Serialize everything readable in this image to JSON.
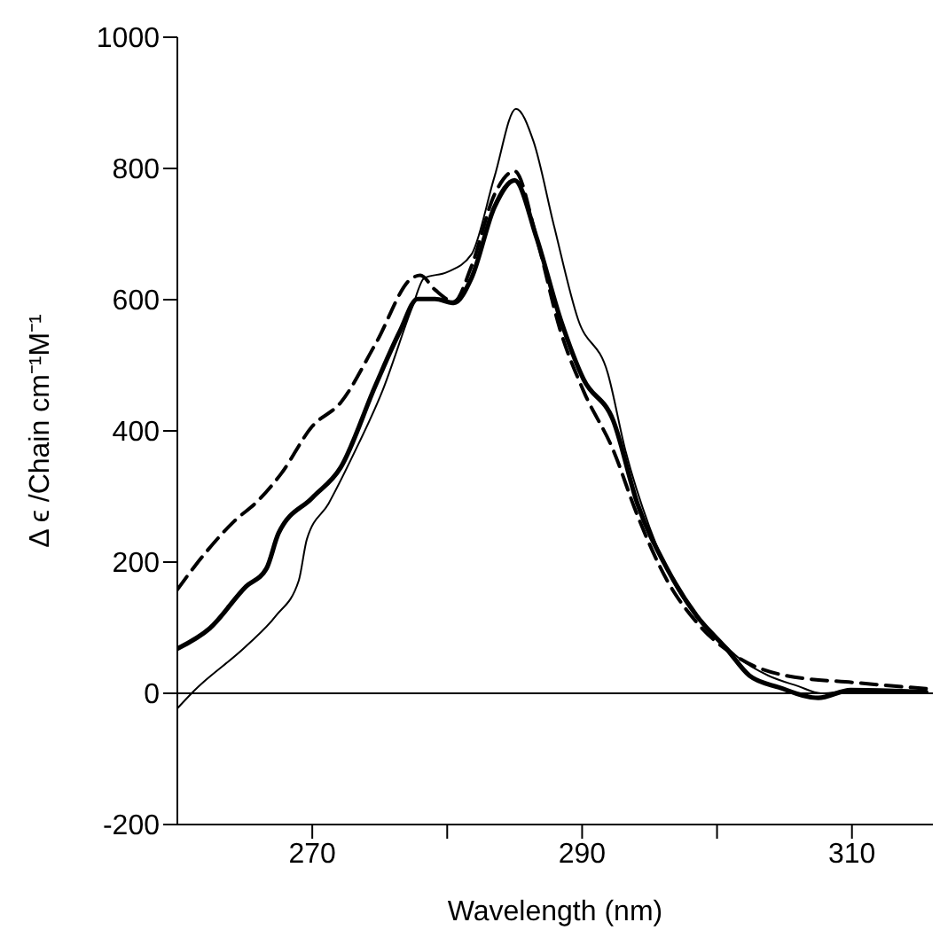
{
  "chart_data": {
    "type": "line",
    "xlabel": "Wavelength (nm)",
    "ylabel": "Δ ϵ /Chain cm⁻¹M⁻¹",
    "xlim": [
      260,
      316
    ],
    "xticks": [
      270,
      {
        "value": 280,
        "label": null
      },
      290,
      {
        "value": 300,
        "label": null
      },
      310
    ],
    "ylim": [
      -200,
      1000
    ],
    "yticks": [
      -200,
      0,
      200,
      400,
      600,
      800,
      1000
    ],
    "grid": false,
    "legend": false,
    "marker": "none",
    "ref_lines": [
      {
        "axis": "y",
        "value": 0,
        "color": "#000000",
        "line_style": "solid"
      }
    ],
    "series": [
      {
        "color": "#000000",
        "line_style": "solid",
        "x": [
          260,
          261.3,
          265.1,
          267.3,
          269,
          269.6,
          271.2,
          273,
          275.2,
          277.4,
          278.3,
          280,
          281.8,
          283.5,
          285.1,
          286.4,
          287.9,
          289.7,
          291.9,
          293.2,
          295,
          297.2,
          299.4,
          301.6,
          303.8,
          306,
          307.7,
          310.4,
          315.5
        ],
        "values": [
          -23,
          5,
          72,
          118,
          172,
          235,
          289,
          362,
          461,
          588,
          633,
          642,
          669,
          787,
          891,
          841,
          714,
          570,
          488,
          371,
          253,
          154,
          99,
          54,
          27,
          11,
          0,
          5,
          0
        ]
      },
      {
        "color": "#000000",
        "line_style": "solid",
        "x": [
          260,
          262.4,
          265.1,
          266.6,
          267.5,
          270,
          272.1,
          274.7,
          276.5,
          277.8,
          279.1,
          280.5,
          281.8,
          283.5,
          285,
          286.6,
          288.4,
          290.1,
          292.3,
          294.1,
          296.3,
          298.5,
          300.7,
          302.4,
          304.6,
          307.5,
          309.9,
          315.5
        ],
        "values": [
          68,
          99,
          163,
          190,
          244,
          298,
          344,
          470,
          552,
          601,
          601,
          595,
          633,
          741,
          782,
          696,
          570,
          479,
          416,
          289,
          190,
          118,
          68,
          27,
          9,
          -7,
          5,
          2
        ]
      },
      {
        "color": "#000000",
        "line_style": "dashed",
        "x": [
          260,
          261.3,
          264.2,
          266,
          267.7,
          270,
          272.1,
          274.7,
          277.4,
          278,
          279.1,
          280.5,
          281.8,
          283.5,
          285,
          286.6,
          288.4,
          290.1,
          292.3,
          294.1,
          296.3,
          298.5,
          301.6,
          305.1,
          310.4,
          315.5
        ],
        "values": [
          158,
          194,
          262,
          294,
          335,
          407,
          443,
          533,
          633,
          637,
          615,
          597,
          651,
          760,
          796,
          696,
          552,
          461,
          371,
          271,
          172,
          108,
          54,
          27,
          16,
          7
        ]
      }
    ]
  }
}
